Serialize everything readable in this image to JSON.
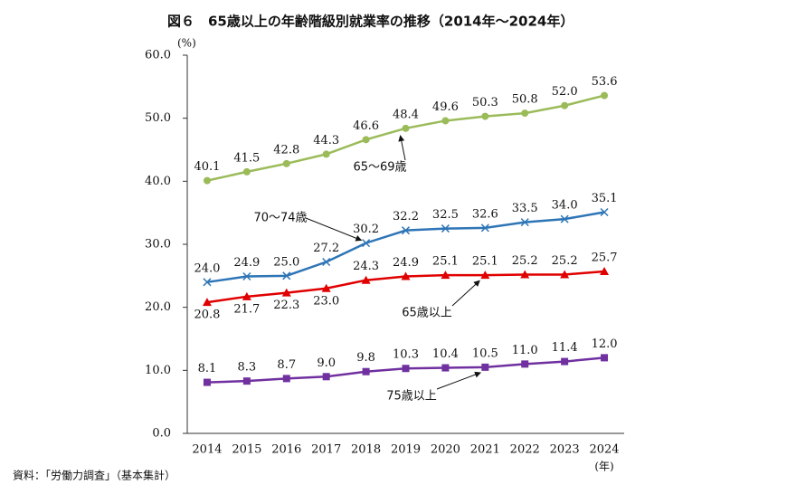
{
  "chart_data": {
    "type": "line",
    "title": "図６　65歳以上の年齢階級別就業率の推移（2014年～2024年）",
    "y_unit": "(%)",
    "x_unit": "(年)",
    "source": "資料：「労働力調査」（基本集計）",
    "categories": [
      "2014",
      "2015",
      "2016",
      "2017",
      "2018",
      "2019",
      "2020",
      "2021",
      "2022",
      "2023",
      "2024"
    ],
    "series": [
      {
        "name": "65～69歳",
        "color": "#9bbb59",
        "marker": "circle",
        "values": [
          40.1,
          41.5,
          42.8,
          44.3,
          46.6,
          48.4,
          49.6,
          50.3,
          50.8,
          52.0,
          53.6
        ],
        "value_labels": [
          "40.1",
          "41.5",
          "42.8",
          "44.3",
          "46.6",
          "48.4",
          "49.6",
          "50.3",
          "50.8",
          "52.0",
          "53.6"
        ]
      },
      {
        "name": "70～74歳",
        "color": "#2e75b6",
        "marker": "x",
        "values": [
          24.0,
          24.9,
          25.0,
          27.2,
          30.2,
          32.2,
          32.5,
          32.6,
          33.5,
          34.0,
          35.1
        ],
        "value_labels": [
          "24.0",
          "24.9",
          "25.0",
          "27.2",
          "30.2",
          "32.2",
          "32.5",
          "32.6",
          "33.5",
          "34.0",
          "35.1"
        ]
      },
      {
        "name": "65歳以上",
        "color": "#e00000",
        "marker": "triangle",
        "values": [
          20.8,
          21.7,
          22.3,
          23.0,
          24.3,
          24.9,
          25.1,
          25.1,
          25.2,
          25.2,
          25.7
        ],
        "value_labels": [
          "20.8",
          "21.7",
          "22.3",
          "23.0",
          "24.3",
          "24.9",
          "25.1",
          "25.1",
          "25.2",
          "25.2",
          "25.7"
        ]
      },
      {
        "name": "75歳以上",
        "color": "#7030a0",
        "marker": "square",
        "values": [
          8.1,
          8.3,
          8.7,
          9.0,
          9.8,
          10.3,
          10.4,
          10.5,
          11.0,
          11.4,
          12.0
        ],
        "value_labels": [
          "8.1",
          "8.3",
          "8.7",
          "9.0",
          "9.8",
          "10.3",
          "10.4",
          "10.5",
          "11.0",
          "11.4",
          "12.0"
        ]
      }
    ],
    "ylim": [
      0,
      60
    ],
    "yticks": [
      {
        "value": 0,
        "label": "0.0"
      },
      {
        "value": 10,
        "label": "10.0"
      },
      {
        "value": 20,
        "label": "20.0"
      },
      {
        "value": 30,
        "label": "30.0"
      },
      {
        "value": 40,
        "label": "40.0"
      },
      {
        "value": 50,
        "label": "50.0"
      },
      {
        "value": 60,
        "label": "60.0"
      }
    ],
    "grid": false
  }
}
